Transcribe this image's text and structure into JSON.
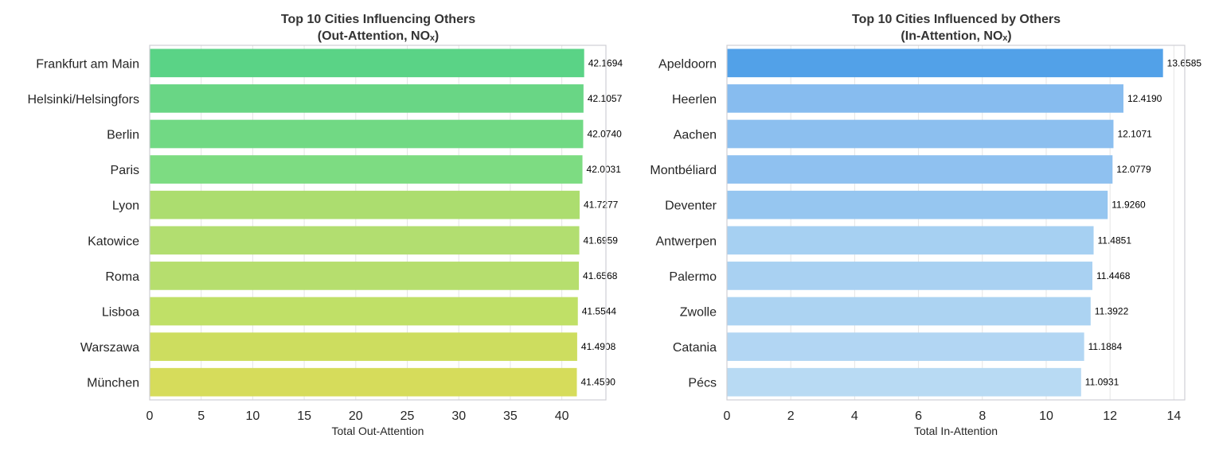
{
  "chart_data": [
    {
      "type": "bar",
      "orientation": "horizontal",
      "title_lines": [
        "Top 10 Cities Influencing Others",
        "(Out-Attention, NOₓ)"
      ],
      "xlabel": "Total Out-Attention",
      "ylabel": "",
      "xlim": [
        0,
        44.28
      ],
      "xticks": [
        0,
        5,
        10,
        15,
        20,
        25,
        30,
        35,
        40
      ],
      "grid": true,
      "categories": [
        "Frankfurt am Main",
        "Helsinki/Helsingfors",
        "Berlin",
        "Paris",
        "Lyon",
        "Katowice",
        "Roma",
        "Lisboa",
        "Warszawa",
        "München"
      ],
      "values": [
        42.1694,
        42.1057,
        42.074,
        42.0031,
        41.7277,
        41.6959,
        41.6568,
        41.5544,
        41.4908,
        41.459
      ],
      "value_labels": [
        "42.1694",
        "42.1057",
        "42.0740",
        "42.0031",
        "41.7277",
        "41.6959",
        "41.6568",
        "41.5544",
        "41.4908",
        "41.4590"
      ],
      "colors": [
        "#5ad386",
        "#69d685",
        "#71d984",
        "#7ddc82",
        "#acdd6f",
        "#b2de70",
        "#b6de6e",
        "#c0e067",
        "#cddd5f",
        "#d6dc5b"
      ]
    },
    {
      "type": "bar",
      "orientation": "horizontal",
      "title_lines": [
        "Top 10 Cities Influenced by Others",
        "(In-Attention, NOₓ)"
      ],
      "xlabel": "Total In-Attention",
      "ylabel": "",
      "xlim": [
        0,
        14.34
      ],
      "xticks": [
        0,
        2,
        4,
        6,
        8,
        10,
        12,
        14
      ],
      "grid": true,
      "categories": [
        "Apeldoorn",
        "Heerlen",
        "Aachen",
        "Montbéliard",
        "Deventer",
        "Antwerpen",
        "Palermo",
        "Zwolle",
        "Catania",
        "Pécs"
      ],
      "values": [
        13.6585,
        12.419,
        12.1071,
        12.0779,
        11.926,
        11.4851,
        11.4468,
        11.3922,
        11.1884,
        11.0931
      ],
      "value_labels": [
        "13.6585",
        "12.4190",
        "12.1071",
        "12.0779",
        "11.9260",
        "11.4851",
        "11.4468",
        "11.3922",
        "11.1884",
        "11.0931"
      ],
      "colors": [
        "#52a1e8",
        "#87bcef",
        "#8cbfef",
        "#8fc1f0",
        "#96c6f0",
        "#a6d0f2",
        "#a9d1f2",
        "#acd3f2",
        "#b2d6f3",
        "#b8daf3"
      ]
    }
  ]
}
